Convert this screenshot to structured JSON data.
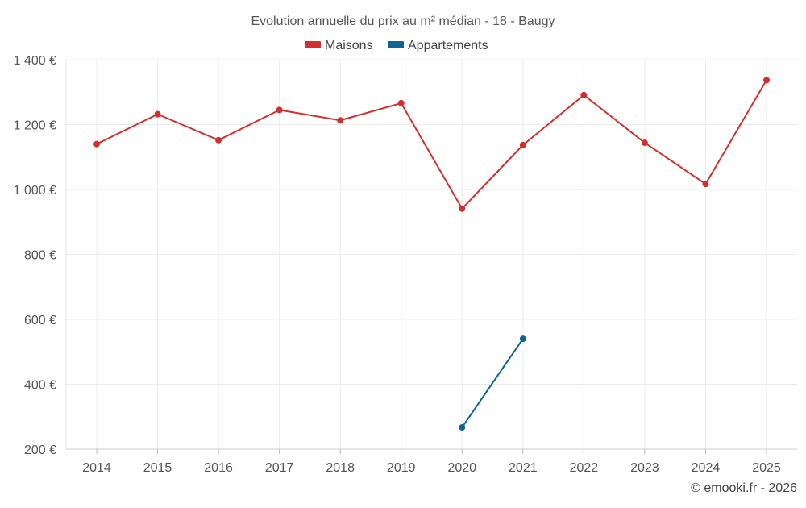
{
  "chart_data": {
    "type": "line",
    "title": "Evolution annuelle du prix au m² médian - 18 - Baugy",
    "xlabel": "",
    "ylabel": "",
    "categories": [
      "2014",
      "2015",
      "2016",
      "2017",
      "2018",
      "2019",
      "2020",
      "2021",
      "2022",
      "2023",
      "2024",
      "2025"
    ],
    "series": [
      {
        "name": "Maisons",
        "color": "#d32f2f",
        "values": [
          1140,
          1232,
          1152,
          1245,
          1213,
          1266,
          941,
          1137,
          1291,
          1144,
          1017,
          1337
        ]
      },
      {
        "name": "Appartements",
        "color": "#0f6496",
        "values": [
          null,
          null,
          null,
          null,
          null,
          null,
          267,
          540,
          null,
          null,
          null,
          null
        ]
      }
    ],
    "ylim": [
      200,
      1400
    ],
    "yticks": [
      200,
      400,
      600,
      800,
      1000,
      1200,
      1400
    ],
    "ytick_labels": [
      "200 €",
      "400 €",
      "600 €",
      "800 €",
      "1 000 €",
      "1 200 €",
      "1 400 €"
    ],
    "grid": true,
    "legend_position": "top-center"
  },
  "credit": "© emooki.fr - 2026"
}
